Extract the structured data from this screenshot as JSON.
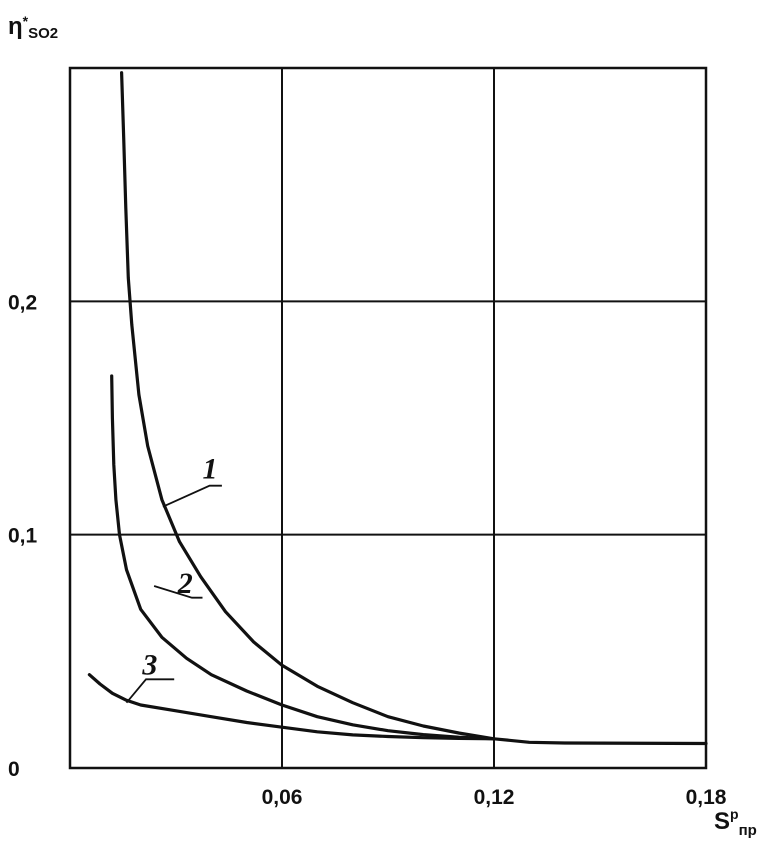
{
  "chart_data": {
    "type": "line",
    "x_axis": {
      "label_main": "S",
      "label_sup": "p",
      "label_sub": "пр",
      "range": [
        0,
        0.18
      ],
      "ticks": [
        {
          "value": 0.06,
          "label": "0,06"
        },
        {
          "value": 0.12,
          "label": "0,12"
        },
        {
          "value": 0.18,
          "label": "0,18"
        }
      ]
    },
    "y_axis": {
      "label_main": "η",
      "label_sup": "*",
      "label_sub": "SO2",
      "range": [
        0,
        0.3
      ],
      "ticks": [
        {
          "value": 0,
          "label": "0"
        },
        {
          "value": 0.1,
          "label": "0,1"
        },
        {
          "value": 0.2,
          "label": "0,2"
        }
      ]
    },
    "grid": true,
    "series": [
      {
        "name": "1",
        "color": "#111111",
        "points": [
          [
            0.0146,
            0.298
          ],
          [
            0.0152,
            0.27
          ],
          [
            0.0158,
            0.24
          ],
          [
            0.0165,
            0.21
          ],
          [
            0.0175,
            0.19
          ],
          [
            0.0195,
            0.16
          ],
          [
            0.022,
            0.138
          ],
          [
            0.026,
            0.115
          ],
          [
            0.031,
            0.097
          ],
          [
            0.037,
            0.082
          ],
          [
            0.044,
            0.067
          ],
          [
            0.052,
            0.054
          ],
          [
            0.06,
            0.044
          ],
          [
            0.07,
            0.035
          ],
          [
            0.08,
            0.028
          ],
          [
            0.09,
            0.022
          ],
          [
            0.1,
            0.018
          ],
          [
            0.11,
            0.015
          ],
          [
            0.12,
            0.0125
          ],
          [
            0.13,
            0.011
          ],
          [
            0.14,
            0.0107
          ],
          [
            0.18,
            0.0105
          ]
        ]
      },
      {
        "name": "2",
        "color": "#111111",
        "points": [
          [
            0.0118,
            0.168
          ],
          [
            0.012,
            0.15
          ],
          [
            0.0124,
            0.13
          ],
          [
            0.013,
            0.115
          ],
          [
            0.014,
            0.1
          ],
          [
            0.016,
            0.085
          ],
          [
            0.02,
            0.068
          ],
          [
            0.026,
            0.056
          ],
          [
            0.033,
            0.047
          ],
          [
            0.04,
            0.04
          ],
          [
            0.05,
            0.033
          ],
          [
            0.06,
            0.027
          ],
          [
            0.07,
            0.022
          ],
          [
            0.08,
            0.0185
          ],
          [
            0.09,
            0.016
          ],
          [
            0.1,
            0.0143
          ],
          [
            0.11,
            0.0132
          ],
          [
            0.12,
            0.0125
          ]
        ]
      },
      {
        "name": "3",
        "color": "#111111",
        "points": [
          [
            0.0055,
            0.04
          ],
          [
            0.0085,
            0.036
          ],
          [
            0.012,
            0.032
          ],
          [
            0.016,
            0.029
          ],
          [
            0.02,
            0.027
          ],
          [
            0.03,
            0.0245
          ],
          [
            0.04,
            0.022
          ],
          [
            0.05,
            0.0195
          ],
          [
            0.06,
            0.0175
          ],
          [
            0.07,
            0.0155
          ],
          [
            0.08,
            0.0142
          ],
          [
            0.09,
            0.0135
          ],
          [
            0.1,
            0.013
          ],
          [
            0.11,
            0.0127
          ],
          [
            0.12,
            0.0125
          ]
        ]
      }
    ],
    "curve_labels": [
      {
        "text": "1",
        "leader_from": [
          0.0263,
          0.112
        ],
        "leader_mid": [
          0.0395,
          0.121
        ],
        "leader_to": [
          0.043,
          0.121
        ],
        "label_at": [
          0.0375,
          0.124
        ]
      },
      {
        "text": "2",
        "leader_from": [
          0.0238,
          0.078
        ],
        "leader_mid": [
          0.0345,
          0.073
        ],
        "leader_to": [
          0.0375,
          0.073
        ],
        "label_at": [
          0.0305,
          0.075
        ]
      },
      {
        "text": "3",
        "leader_from": [
          0.016,
          0.028
        ],
        "leader_mid": [
          0.0215,
          0.038
        ],
        "leader_to": [
          0.0295,
          0.038
        ],
        "label_at": [
          0.0205,
          0.04
        ]
      }
    ]
  }
}
